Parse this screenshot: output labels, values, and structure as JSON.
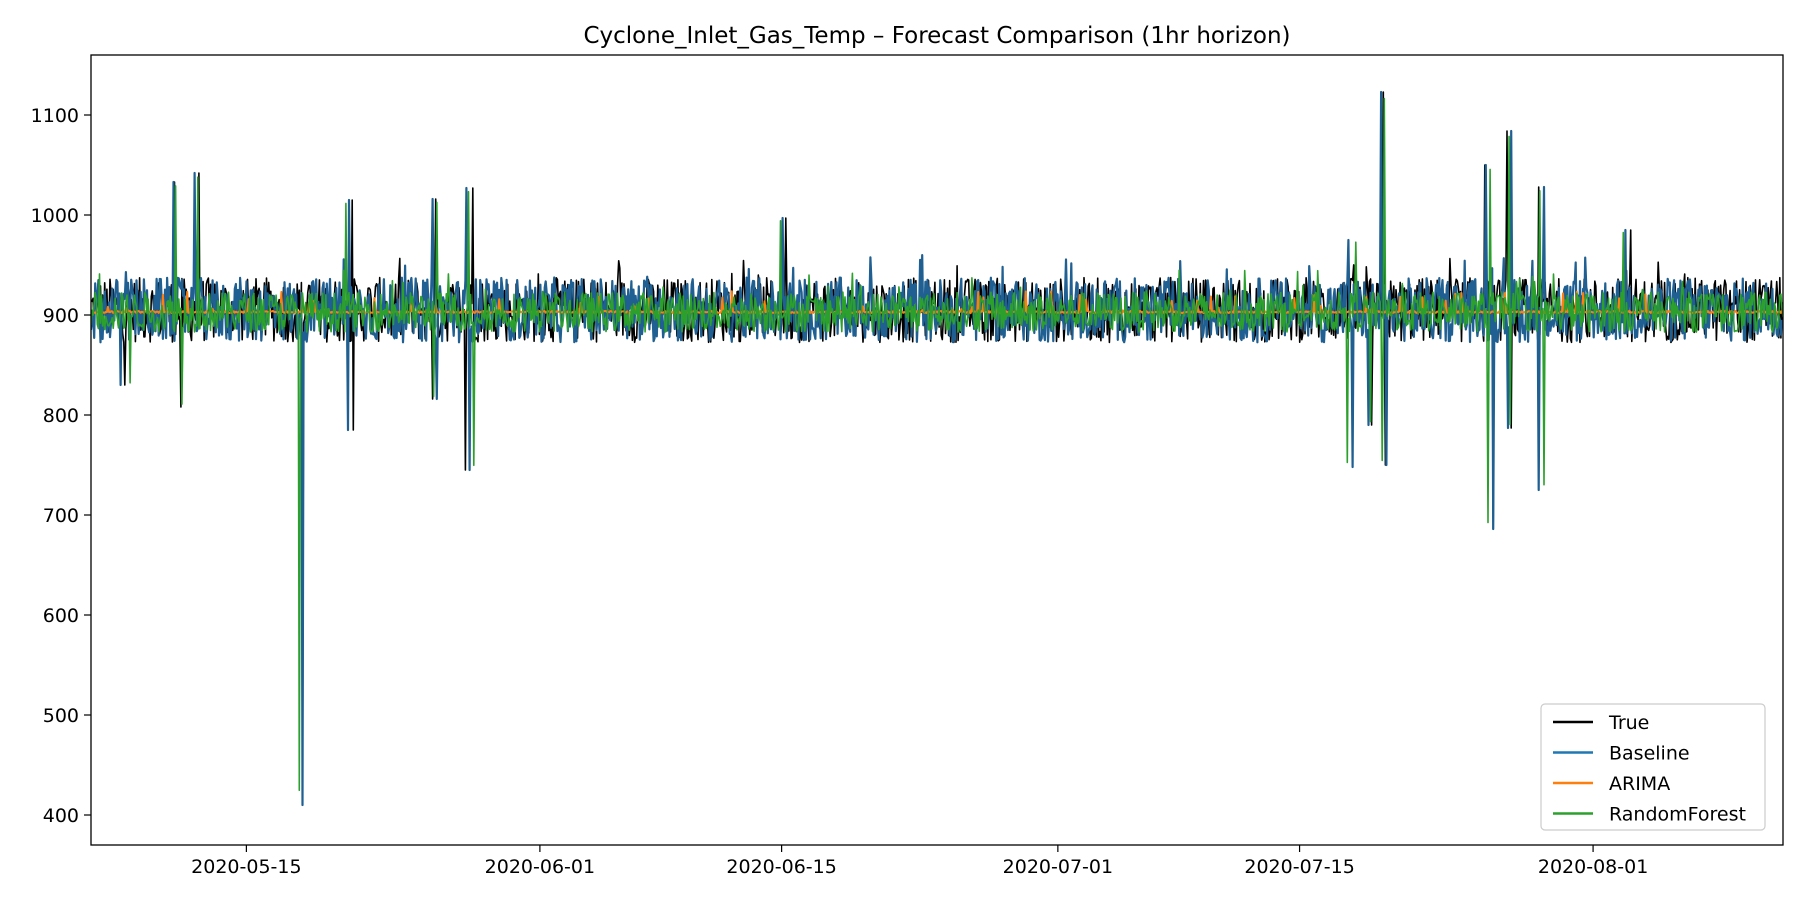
{
  "chart_data": {
    "type": "line",
    "title": "Cyclone_Inlet_Gas_Temp – Forecast Comparison (1hr horizon)",
    "xlabel": "",
    "ylabel": "",
    "x_range": [
      "2020-05-06",
      "2020-08-12"
    ],
    "xlim": [
      "2020-05-06",
      "2020-08-12"
    ],
    "ylim": [
      370,
      1160
    ],
    "x_ticks": [
      "2020-05-15",
      "2020-06-01",
      "2020-06-15",
      "2020-07-01",
      "2020-07-15",
      "2020-08-01"
    ],
    "y_ticks": [
      400,
      500,
      600,
      700,
      800,
      900,
      1000,
      1100
    ],
    "grid": false,
    "legend_position": "lower-right",
    "series": [
      {
        "name": "True",
        "color": "#000000",
        "band": {
          "mean": 905,
          "range": [
            875,
            940
          ]
        }
      },
      {
        "name": "Baseline",
        "color": "#1f77b4",
        "band": {
          "mean": 905,
          "range": [
            875,
            940
          ]
        }
      },
      {
        "name": "ARIMA",
        "color": "#ff7f0e",
        "band": {
          "mean": 903,
          "range": [
            902,
            904
          ]
        }
      },
      {
        "name": "RandomForest",
        "color": "#2ca02c",
        "band": {
          "mean": 903,
          "range": [
            885,
            925
          ]
        }
      }
    ],
    "notable_points": [
      {
        "x": "2020-05-08",
        "y": 830
      },
      {
        "x": "2020-05-11",
        "y": 808
      },
      {
        "x": "2020-05-11",
        "y": 1033
      },
      {
        "x": "2020-05-12",
        "y": 1042
      },
      {
        "x": "2020-05-18",
        "y": 410
      },
      {
        "x": "2020-05-21",
        "y": 785
      },
      {
        "x": "2020-05-21",
        "y": 1015
      },
      {
        "x": "2020-05-26",
        "y": 816
      },
      {
        "x": "2020-05-26",
        "y": 1016
      },
      {
        "x": "2020-05-28",
        "y": 745
      },
      {
        "x": "2020-05-28",
        "y": 1027
      },
      {
        "x": "2020-06-15",
        "y": 997
      },
      {
        "x": "2020-07-18",
        "y": 748
      },
      {
        "x": "2020-07-18",
        "y": 975
      },
      {
        "x": "2020-07-19",
        "y": 790
      },
      {
        "x": "2020-07-20",
        "y": 750
      },
      {
        "x": "2020-07-20",
        "y": 1123
      },
      {
        "x": "2020-07-26",
        "y": 686
      },
      {
        "x": "2020-07-26",
        "y": 1050
      },
      {
        "x": "2020-07-27",
        "y": 787
      },
      {
        "x": "2020-07-27",
        "y": 1084
      },
      {
        "x": "2020-07-29",
        "y": 725
      },
      {
        "x": "2020-07-29",
        "y": 1028
      },
      {
        "x": "2020-08-03",
        "y": 985
      }
    ]
  }
}
